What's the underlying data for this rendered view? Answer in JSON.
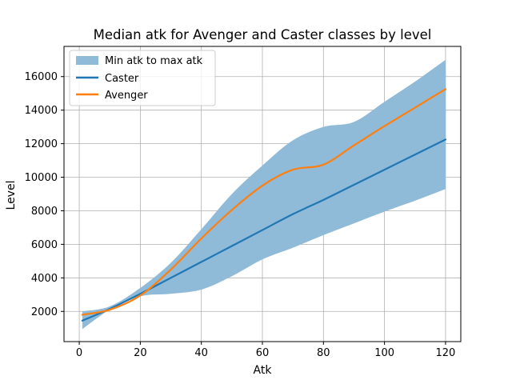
{
  "chart_data": {
    "type": "line",
    "title": "Median atk for Avenger and Caster classes by level",
    "xlabel": "Atk",
    "ylabel": "Level",
    "xlim": [
      -5,
      125
    ],
    "ylim": [
      200,
      17800
    ],
    "xticks": [
      0,
      20,
      40,
      60,
      80,
      100,
      120
    ],
    "yticks": [
      2000,
      4000,
      6000,
      8000,
      10000,
      12000,
      14000,
      16000
    ],
    "grid": true,
    "legend_position": "top-left",
    "band": {
      "name": "Min atk to max atk",
      "color": "#8fbbd9",
      "x": [
        1,
        10,
        20,
        30,
        40,
        50,
        60,
        70,
        80,
        90,
        100,
        110,
        120
      ],
      "lower": [
        950,
        2100,
        2900,
        3050,
        3300,
        4100,
        5100,
        5800,
        6550,
        7250,
        7950,
        8600,
        9300
      ],
      "upper": [
        2000,
        2300,
        3400,
        4900,
        6900,
        9000,
        10700,
        12200,
        13000,
        13300,
        14500,
        15700,
        17000
      ]
    },
    "series": [
      {
        "name": "Caster",
        "color": "#1f77b4",
        "x": [
          1,
          10,
          20,
          30,
          40,
          50,
          60,
          70,
          80,
          90,
          100,
          110,
          120
        ],
        "values": [
          1450,
          2150,
          3050,
          4000,
          4950,
          5900,
          6850,
          7800,
          8650,
          9550,
          10450,
          11350,
          12250
        ]
      },
      {
        "name": "Avenger",
        "color": "#ff7f0e",
        "x": [
          1,
          10,
          20,
          30,
          40,
          50,
          60,
          70,
          80,
          90,
          100,
          110,
          120
        ],
        "values": [
          1800,
          2100,
          2950,
          4500,
          6350,
          8050,
          9500,
          10450,
          10750,
          11900,
          13050,
          14150,
          15250
        ]
      }
    ]
  }
}
